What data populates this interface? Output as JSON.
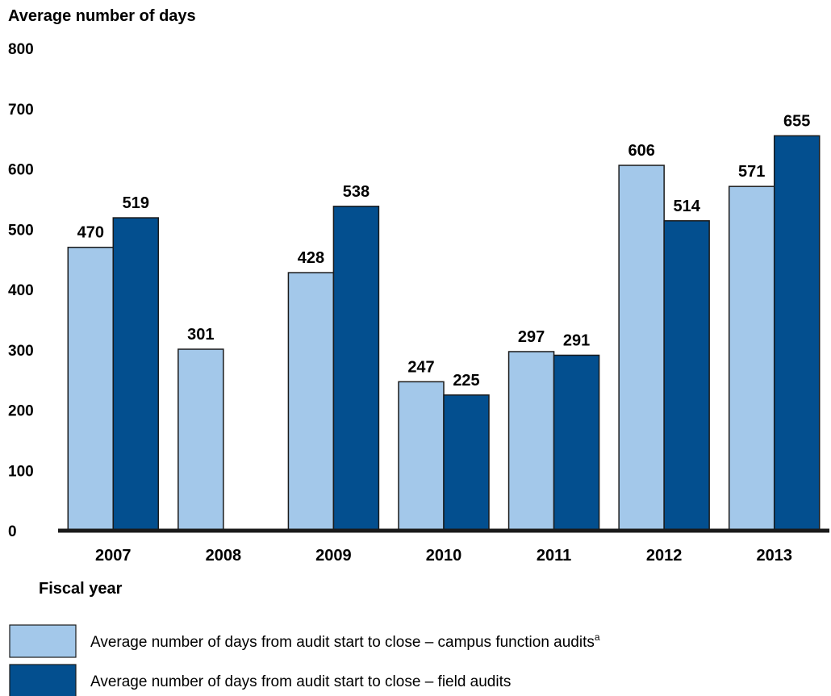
{
  "chart_data": {
    "type": "bar",
    "ylabel": "Average number of days",
    "xlabel": "Fiscal year",
    "ylim": [
      0,
      800
    ],
    "yticks": [
      0,
      100,
      200,
      300,
      400,
      500,
      600,
      700,
      800
    ],
    "categories": [
      "2007",
      "2008",
      "2009",
      "2010",
      "2011",
      "2012",
      "2013"
    ],
    "grid": false,
    "legend_position": "bottom",
    "series": [
      {
        "name": "Average number of days from audit start to close – campus function audits",
        "name_superscript": "a",
        "color": "#a3c8ea",
        "values": [
          470,
          301,
          428,
          247,
          297,
          606,
          571
        ]
      },
      {
        "name": "Average number of days from audit start to close – field audits",
        "color": "#034f8f",
        "values": [
          519,
          null,
          538,
          225,
          291,
          514,
          655
        ]
      }
    ]
  }
}
